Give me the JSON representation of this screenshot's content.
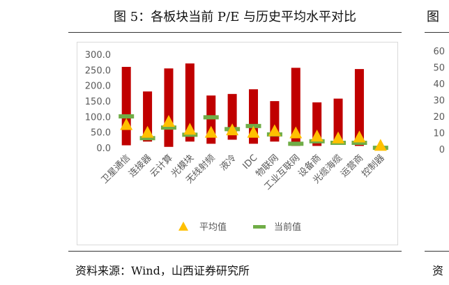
{
  "title": "图 5：各板块当前 P/E 与历史平均水平对比",
  "source": "资料来源：Wind，山西证券研究所",
  "fragments": {
    "right_title": "图",
    "right_source": "资",
    "right_ticks": [
      "60",
      "50",
      "40",
      "30",
      "20",
      "10",
      "0"
    ]
  },
  "colors": {
    "bar": "#c00000",
    "avg_marker": "#ffc000",
    "current_marker": "#70ad47"
  },
  "chart_data": {
    "type": "bar",
    "title": "",
    "xlabel": "",
    "ylabel": "",
    "ylim": [
      0,
      300
    ],
    "yticks": [
      "300.0",
      "250.0",
      "200.0",
      "150.0",
      "100.0",
      "50.0",
      "0.0"
    ],
    "categories": [
      "卫星通信",
      "连接器",
      "云计算",
      "光模块",
      "无线射频",
      "液冷",
      "IDC",
      "物联网",
      "工业互联网",
      "设备商",
      "光缆海缆",
      "运营商",
      "控制器"
    ],
    "series": [
      {
        "name": "",
        "kind": "range_bar",
        "low": [
          10,
          22,
          5,
          22,
          15,
          28,
          15,
          22,
          8,
          8,
          18,
          8,
          0
        ],
        "high": [
          262,
          183,
          257,
          273,
          170,
          175,
          190,
          152,
          259,
          148,
          160,
          255,
          0
        ]
      },
      {
        "name": "平均值",
        "kind": "triangle_marker",
        "values": [
          75,
          50,
          85,
          60,
          50,
          58,
          50,
          55,
          48,
          38,
          32,
          35,
          8
        ]
      },
      {
        "name": "当前值",
        "kind": "dash_marker",
        "values": [
          103,
          33,
          67,
          44,
          100,
          62,
          72,
          45,
          15,
          23,
          18,
          18,
          2
        ]
      }
    ],
    "legend": [
      "平均值",
      "当前值"
    ],
    "legend_position": "bottom",
    "grid": false
  }
}
